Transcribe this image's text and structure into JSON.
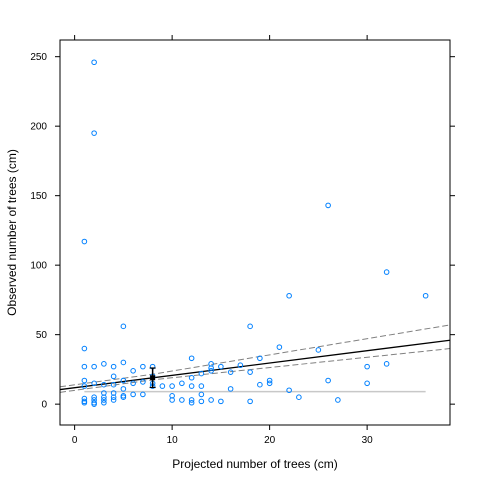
{
  "chart_data": {
    "type": "scatter",
    "title": "",
    "xlabel": "Projected number of trees (cm)",
    "ylabel": "Observed number of trees (cm)",
    "xlim": [
      -1.5,
      38.5
    ],
    "ylim": [
      -15,
      262
    ],
    "xticks": [
      0,
      10,
      20,
      30
    ],
    "yticks": [
      0,
      50,
      100,
      150,
      200,
      250
    ],
    "grid": false,
    "colors": {
      "points": "#0080ff",
      "fit_line": "#000000",
      "confidence_band": "#808080",
      "reference_line": "#c8c8c8",
      "error_bar": "#000000"
    },
    "series": [
      {
        "points": [
          [
            1,
            117
          ],
          [
            1,
            40
          ],
          [
            1,
            27
          ],
          [
            1,
            17
          ],
          [
            1,
            13
          ],
          [
            1,
            4
          ],
          [
            1,
            2
          ],
          [
            1,
            1
          ],
          [
            2,
            246
          ],
          [
            2,
            195
          ],
          [
            2,
            27
          ],
          [
            2,
            15
          ],
          [
            2,
            5
          ],
          [
            2,
            3
          ],
          [
            2,
            1
          ],
          [
            2,
            0
          ],
          [
            3,
            29
          ],
          [
            3,
            14
          ],
          [
            3,
            8
          ],
          [
            3,
            5
          ],
          [
            3,
            3
          ],
          [
            3,
            1
          ],
          [
            4,
            27
          ],
          [
            4,
            20
          ],
          [
            4,
            14
          ],
          [
            4,
            8
          ],
          [
            4,
            5
          ],
          [
            4,
            3
          ],
          [
            5,
            56
          ],
          [
            5,
            30
          ],
          [
            5,
            17
          ],
          [
            5,
            11
          ],
          [
            5,
            6
          ],
          [
            5,
            5
          ],
          [
            6,
            24
          ],
          [
            6,
            15
          ],
          [
            6,
            7
          ],
          [
            7,
            27
          ],
          [
            7,
            16
          ],
          [
            7,
            7
          ],
          [
            8,
            27
          ],
          [
            8,
            20
          ],
          [
            8,
            15
          ],
          [
            8,
            13
          ],
          [
            9,
            13
          ],
          [
            10,
            13
          ],
          [
            10,
            6
          ],
          [
            10,
            3
          ],
          [
            11,
            15
          ],
          [
            11,
            3
          ],
          [
            12,
            33
          ],
          [
            12,
            19
          ],
          [
            12,
            13
          ],
          [
            12,
            3
          ],
          [
            12,
            1
          ],
          [
            13,
            22
          ],
          [
            13,
            13
          ],
          [
            13,
            7
          ],
          [
            13,
            2
          ],
          [
            14,
            29
          ],
          [
            14,
            26
          ],
          [
            14,
            24
          ],
          [
            14,
            3
          ],
          [
            15,
            27
          ],
          [
            15,
            2
          ],
          [
            16,
            23
          ],
          [
            16,
            11
          ],
          [
            17,
            28
          ],
          [
            18,
            56
          ],
          [
            18,
            23
          ],
          [
            18,
            2
          ],
          [
            19,
            33
          ],
          [
            19,
            14
          ],
          [
            20,
            17
          ],
          [
            20,
            15
          ],
          [
            21,
            41
          ],
          [
            22,
            78
          ],
          [
            22,
            10
          ],
          [
            23,
            5
          ],
          [
            25,
            39
          ],
          [
            26,
            143
          ],
          [
            26,
            17
          ],
          [
            27,
            3
          ],
          [
            30,
            27
          ],
          [
            30,
            15
          ],
          [
            32,
            95
          ],
          [
            32,
            29
          ],
          [
            36,
            78
          ]
        ]
      }
    ],
    "fit_line": {
      "x": [
        -1.5,
        38.5
      ],
      "y": [
        10.5,
        46
      ]
    },
    "confidence_band": {
      "upper": {
        "x": [
          -1.5,
          8,
          38.5
        ],
        "y": [
          12.5,
          21.5,
          57
        ]
      },
      "lower": {
        "x": [
          -1.5,
          8,
          38.5
        ],
        "y": [
          8.5,
          17.5,
          40
        ]
      }
    },
    "reference_line": {
      "x": [
        1,
        36
      ],
      "y": 9
    },
    "error_bar": {
      "x": 8,
      "center": 19,
      "low": 12,
      "high": 26
    }
  }
}
